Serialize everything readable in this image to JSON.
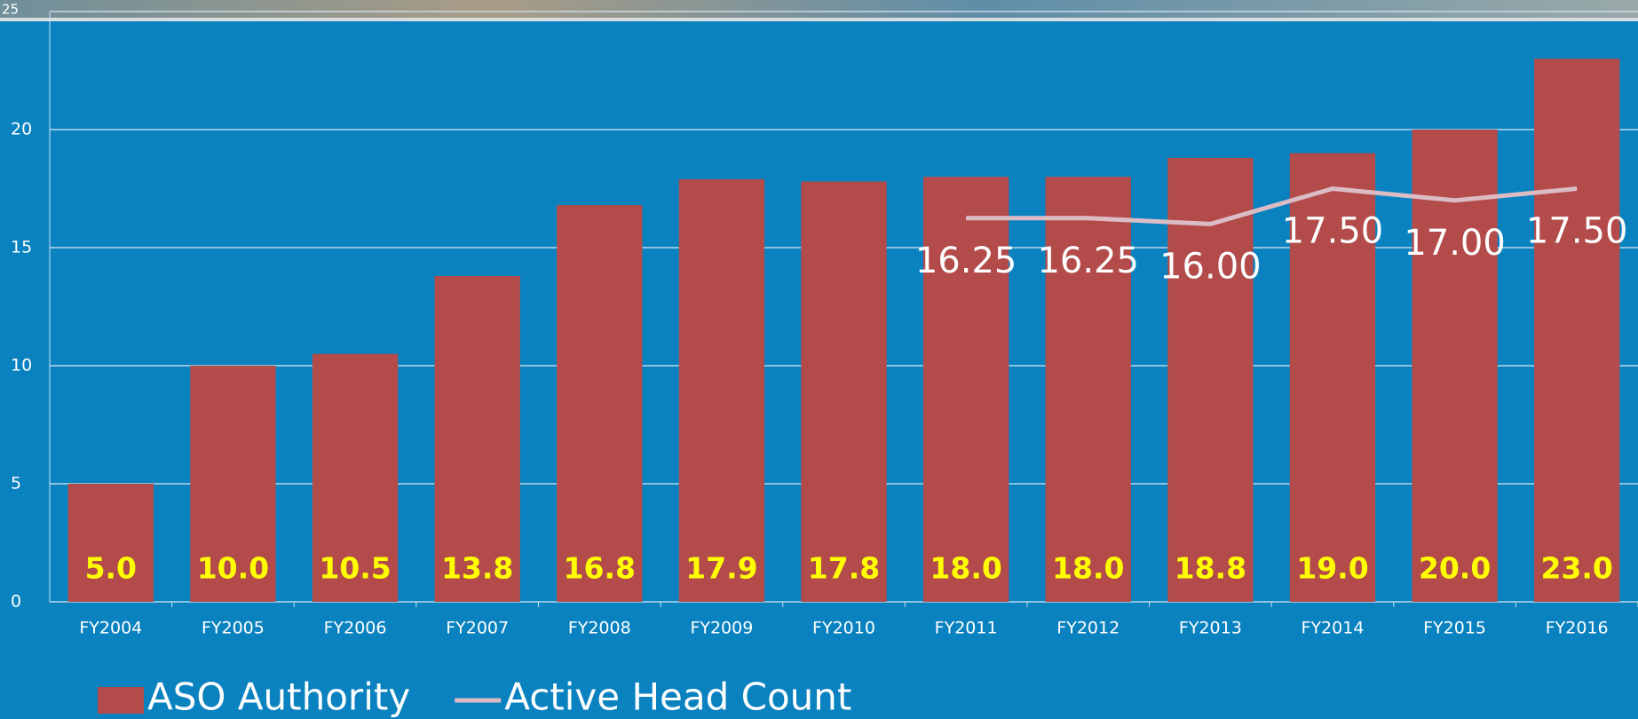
{
  "chart_data": {
    "type": "bar",
    "categories": [
      "FY2004",
      "FY2005",
      "FY2006",
      "FY2007",
      "FY2008",
      "FY2009",
      "FY2010",
      "FY2011",
      "FY2012",
      "FY2013",
      "FY2014",
      "FY2015",
      "FY2016"
    ],
    "series": [
      {
        "name": "ASO Authority",
        "type": "bar",
        "color": "#b34b4b",
        "values": [
          5,
          10,
          10.5,
          13.8,
          16.8,
          17.9,
          17.8,
          18,
          18,
          18.8,
          19,
          20,
          23
        ],
        "value_labels": [
          "5.0",
          "10.0",
          "10.5",
          "13.8",
          "16.8",
          "17.9",
          "17.8",
          "18.0",
          "18.0",
          "18.8",
          "19.0",
          "20.0",
          "23.0"
        ]
      },
      {
        "name": "Active Head Count",
        "type": "line",
        "color": "#dcbcc4",
        "values": [
          null,
          null,
          null,
          null,
          null,
          null,
          null,
          16.25,
          16.25,
          16,
          17.5,
          17,
          17.5
        ],
        "value_labels": [
          null,
          null,
          null,
          null,
          null,
          null,
          null,
          "16.25",
          "16.25",
          "16.00",
          "17.50",
          "17.00",
          "17.50"
        ]
      }
    ],
    "ylim": [
      0,
      25
    ],
    "yticks": [
      0,
      5,
      10,
      15,
      20,
      25
    ],
    "grid": true
  }
}
